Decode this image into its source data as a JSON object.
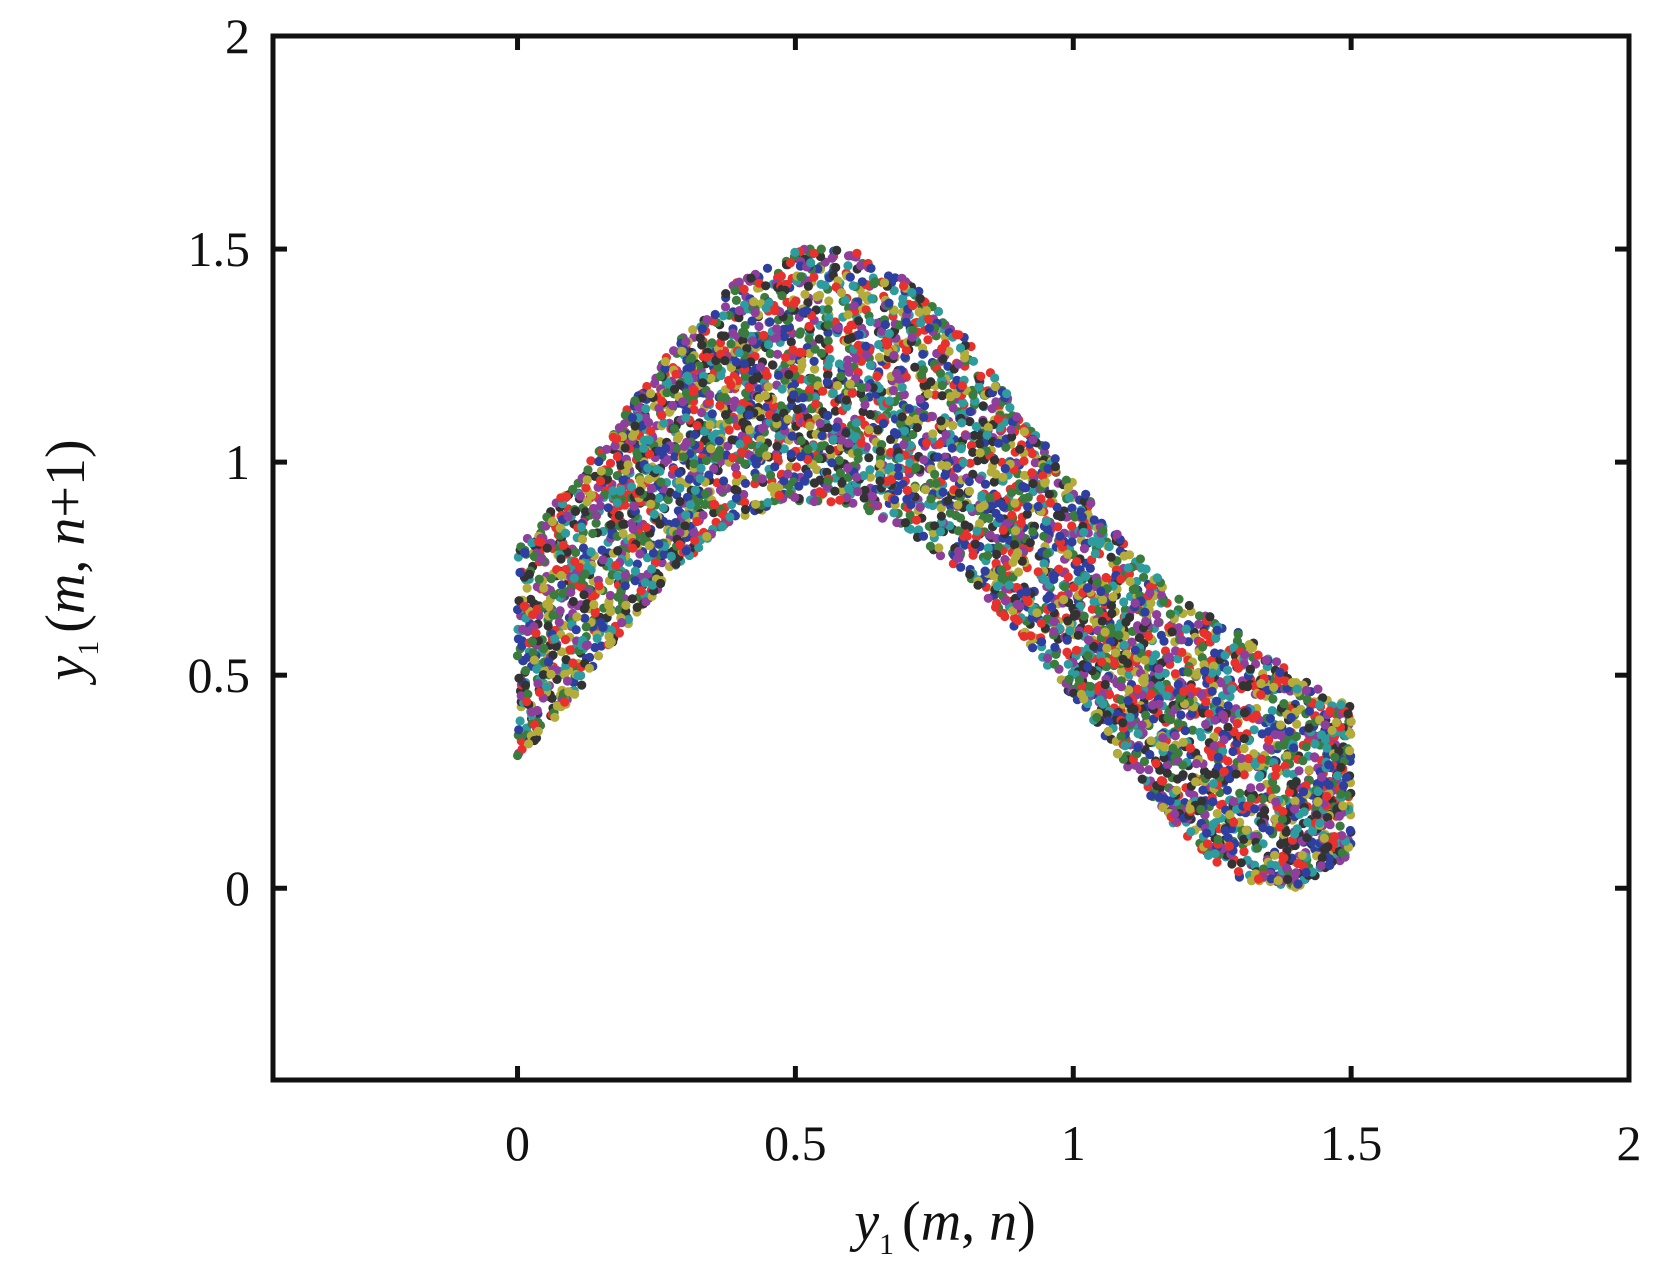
{
  "chart_data": {
    "type": "scatter",
    "title": "",
    "xlabel": {
      "var": "y",
      "sub": "1",
      "open": "(",
      "arg1": "m",
      "sep": ", ",
      "arg2": "n",
      "close": ")"
    },
    "ylabel": {
      "var": "y",
      "sub": "1",
      "open": "(",
      "arg1": "m",
      "sep": ", ",
      "arg2": "n",
      "plus": "+1",
      "close": ")"
    },
    "xlim": [
      -0.44,
      2
    ],
    "ylim": [
      -0.45,
      2
    ],
    "xticks": [
      "0",
      "0.5",
      "1",
      "1.5",
      "2"
    ],
    "yticks": [
      "0",
      "0.5",
      "1",
      "1.5",
      "2"
    ],
    "grid": false,
    "legend": "none",
    "point_colors": [
      "#e8312c",
      "#2f3f9f",
      "#2e9b9e",
      "#3b7b3d",
      "#b3ab3a",
      "#8e3f9b",
      "#333333"
    ],
    "upper_boundary": [
      {
        "x": 0.0,
        "y": 0.8
      },
      {
        "x": 0.1,
        "y": 0.95
      },
      {
        "x": 0.2,
        "y": 1.13
      },
      {
        "x": 0.3,
        "y": 1.3
      },
      {
        "x": 0.4,
        "y": 1.43
      },
      {
        "x": 0.5,
        "y": 1.5
      },
      {
        "x": 0.6,
        "y": 1.5
      },
      {
        "x": 0.7,
        "y": 1.43
      },
      {
        "x": 0.8,
        "y": 1.3
      },
      {
        "x": 0.9,
        "y": 1.13
      },
      {
        "x": 1.0,
        "y": 0.96
      },
      {
        "x": 1.1,
        "y": 0.8
      },
      {
        "x": 1.2,
        "y": 0.67
      },
      {
        "x": 1.3,
        "y": 0.6
      },
      {
        "x": 1.4,
        "y": 0.5
      },
      {
        "x": 1.5,
        "y": 0.43
      }
    ],
    "lower_boundary": [
      {
        "x": 0.0,
        "y": 0.3
      },
      {
        "x": 0.1,
        "y": 0.45
      },
      {
        "x": 0.2,
        "y": 0.62
      },
      {
        "x": 0.3,
        "y": 0.77
      },
      {
        "x": 0.4,
        "y": 0.87
      },
      {
        "x": 0.5,
        "y": 0.91
      },
      {
        "x": 0.6,
        "y": 0.9
      },
      {
        "x": 0.7,
        "y": 0.84
      },
      {
        "x": 0.8,
        "y": 0.74
      },
      {
        "x": 0.9,
        "y": 0.6
      },
      {
        "x": 1.0,
        "y": 0.45
      },
      {
        "x": 1.1,
        "y": 0.28
      },
      {
        "x": 1.2,
        "y": 0.12
      },
      {
        "x": 1.3,
        "y": 0.02
      },
      {
        "x": 1.4,
        "y": 0.0
      },
      {
        "x": 1.5,
        "y": 0.08
      }
    ]
  }
}
